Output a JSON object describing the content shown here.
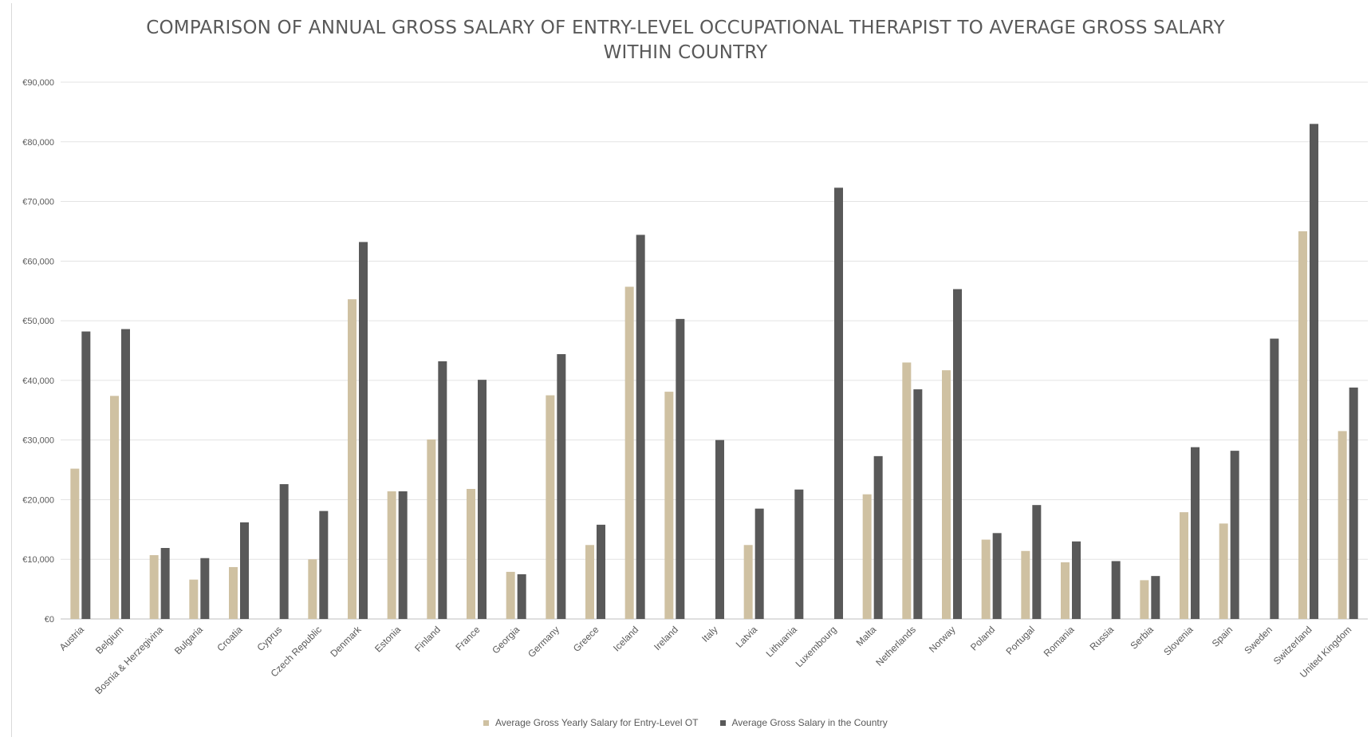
{
  "chart_data": {
    "type": "bar",
    "title": "COMPARISON OF ANNUAL GROSS SALARY OF ENTRY-LEVEL OCCUPATIONAL THERAPIST TO AVERAGE GROSS SALARY\nWITHIN COUNTRY",
    "categories": [
      "Austria",
      "Belgium",
      "Bosnia & Herzegivina",
      "Bulgaria",
      "Croatia",
      "Cyprus",
      "Czech Republic",
      "Denmark",
      "Estonia",
      "Finland",
      "France",
      "Georgia",
      "Germany",
      "Greece",
      "Iceland",
      "Ireland",
      "Italy",
      "Latvia",
      "Lithuania",
      "Luxembourg",
      "Malta",
      "Netherlands",
      "Norway",
      "Poland",
      "Portugal",
      "Romania",
      "Russia",
      "Serbia",
      "Slovenia",
      "Spain",
      "Sweden",
      "Switzerland",
      "United Kingdom"
    ],
    "series": [
      {
        "name": "Average Gross Yearly Salary for Entry-Level OT",
        "color": "#cfc1a2",
        "values": [
          25200,
          37400,
          10700,
          6600,
          8700,
          null,
          10000,
          53600,
          21400,
          30100,
          21800,
          7900,
          37500,
          12400,
          55700,
          38100,
          null,
          12400,
          null,
          null,
          20900,
          43000,
          41700,
          13300,
          11400,
          9500,
          null,
          6500,
          17900,
          16000,
          null,
          65000,
          31500
        ]
      },
      {
        "name": "Average Gross Salary in the Country",
        "color": "#595959",
        "values": [
          48200,
          48600,
          11900,
          10200,
          16200,
          22600,
          18100,
          63200,
          21400,
          43200,
          40100,
          7500,
          44400,
          15800,
          64400,
          50300,
          30000,
          18500,
          21700,
          72300,
          27300,
          38500,
          55300,
          14400,
          19100,
          13000,
          9700,
          7200,
          28800,
          28200,
          47000,
          83000,
          38800
        ]
      }
    ],
    "ylim": [
      0,
      90000
    ],
    "yticks": [
      0,
      10000,
      20000,
      30000,
      40000,
      50000,
      60000,
      70000,
      80000,
      90000
    ],
    "ytick_labels": [
      "€0",
      "€10,000",
      "€20,000",
      "€30,000",
      "€40,000",
      "€50,000",
      "€60,000",
      "€70,000",
      "€80,000",
      "€90,000"
    ],
    "xlabel": "",
    "ylabel": "",
    "grid": true,
    "legend_position": "bottom"
  }
}
